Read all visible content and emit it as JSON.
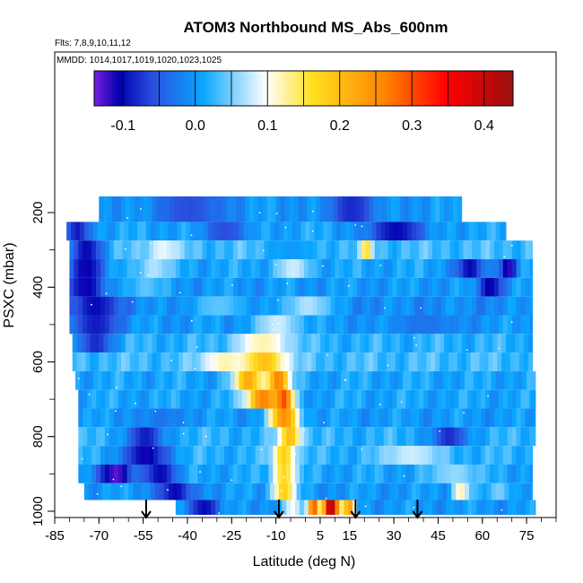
{
  "chart_data": {
    "type": "heatmap",
    "title": "ATOM3 Northbound MS_Abs_600nm",
    "annotations": [
      "Flts: 7,8,9,10,11,12",
      "MMDD: 1014,1017,1019,1020,1023,1025"
    ],
    "xlabel": "Latitude (deg N)",
    "ylabel": "PSXC (mbar)",
    "xlim": [
      -85,
      85
    ],
    "ylim": [
      1000,
      100
    ],
    "x_ticks": [
      -85,
      -70,
      -55,
      -40,
      -25,
      -10,
      5,
      15,
      30,
      45,
      60,
      75
    ],
    "x_tick_labels": [
      "-85",
      "-70",
      "-55",
      "-40",
      "-25",
      "-10",
      "5",
      "15",
      "30",
      "45",
      "60",
      "75"
    ],
    "y_ticks": [
      200,
      400,
      600,
      800,
      1000
    ],
    "y_tick_labels": [
      "200",
      "400",
      "600",
      "800",
      "1000"
    ],
    "colorbar": {
      "range": [
        -0.14,
        0.44
      ],
      "ticks": [
        -0.1,
        0.0,
        0.1,
        0.2,
        0.3,
        0.4
      ],
      "tick_labels": [
        "-0.1",
        "0.0",
        "0.1",
        "0.2",
        "0.3",
        "0.4"
      ],
      "colors": [
        "#7a1fe0",
        "#0000b0",
        "#2a50e0",
        "#0aa6ff",
        "#ffffff",
        "#ffe020",
        "#ff8000",
        "#ff0000",
        "#9a1010"
      ]
    },
    "profile_arrows_latitude": [
      -54,
      -9,
      17,
      38
    ],
    "rows": [
      {
        "p": 200,
        "x0": -70,
        "x1": 53,
        "bg": 0.0,
        "feat": [
          [
            -40,
            0.0,
            12,
            -0.06
          ],
          [
            15,
            -0.06,
            8,
            -0.08
          ]
        ]
      },
      {
        "p": 250,
        "x0": -81,
        "x1": 68,
        "bg": 0.01,
        "feat": [
          [
            -78,
            -0.06,
            4,
            -0.09
          ],
          [
            -28,
            -0.04,
            8,
            -0.06
          ],
          [
            30,
            -0.08,
            10,
            -0.1
          ]
        ]
      },
      {
        "p": 300,
        "x0": -80,
        "x1": 77,
        "bg": 0.03,
        "feat": [
          [
            -75,
            -0.09,
            6,
            -0.1
          ],
          [
            -49,
            0.06,
            6,
            0.09
          ],
          [
            -5,
            0.02,
            8,
            0.0
          ],
          [
            20,
            0.12,
            2,
            0.16
          ]
        ]
      },
      {
        "p": 350,
        "x0": -80,
        "x1": 77,
        "bg": 0.01,
        "feat": [
          [
            -75,
            -0.1,
            6,
            -0.11
          ],
          [
            -52,
            0.04,
            6,
            0.07
          ],
          [
            -5,
            0.06,
            6,
            0.08
          ],
          [
            55,
            -0.09,
            5,
            -0.1
          ],
          [
            68,
            -0.11,
            3,
            -0.12
          ]
        ]
      },
      {
        "p": 400,
        "x0": -80,
        "x1": 77,
        "bg": 0.0,
        "feat": [
          [
            -75,
            -0.1,
            6,
            -0.11
          ],
          [
            -55,
            0.02,
            6,
            0.04
          ],
          [
            62,
            -0.1,
            4,
            -0.11
          ]
        ]
      },
      {
        "p": 450,
        "x0": -80,
        "x1": 77,
        "bg": -0.01,
        "feat": [
          [
            -72,
            -0.1,
            8,
            -0.1
          ],
          [
            -30,
            0.02,
            10,
            0.04
          ],
          [
            0,
            0.05,
            8,
            0.07
          ]
        ]
      },
      {
        "p": 500,
        "x0": -80,
        "x1": 77,
        "bg": 0.0,
        "feat": [
          [
            -72,
            -0.09,
            8,
            -0.09
          ],
          [
            -10,
            0.06,
            8,
            0.08
          ],
          [
            40,
            -0.01,
            12,
            -0.03
          ]
        ]
      },
      {
        "p": 550,
        "x0": -79,
        "x1": 77,
        "bg": 0.02,
        "feat": [
          [
            -72,
            -0.07,
            6,
            -0.08
          ],
          [
            -15,
            0.1,
            10,
            0.12
          ]
        ]
      },
      {
        "p": 600,
        "x0": -79,
        "x1": 77,
        "bg": 0.03,
        "feat": [
          [
            -15,
            0.15,
            8,
            0.2
          ],
          [
            -28,
            0.1,
            8,
            0.12
          ]
        ]
      },
      {
        "p": 650,
        "x0": -78,
        "x1": 78,
        "bg": 0.01,
        "feat": [
          [
            -20,
            0.18,
            5,
            0.22
          ],
          [
            -10,
            0.23,
            4,
            0.26
          ]
        ]
      },
      {
        "p": 700,
        "x0": -77,
        "x1": 78,
        "bg": 0.01,
        "feat": [
          [
            -15,
            0.2,
            6,
            0.26
          ],
          [
            -8,
            0.25,
            3,
            0.3
          ]
        ]
      },
      {
        "p": 750,
        "x0": -77,
        "x1": 78,
        "bg": 0.0,
        "feat": [
          [
            -8,
            0.18,
            5,
            0.25
          ],
          [
            -50,
            -0.02,
            6,
            -0.03
          ]
        ]
      },
      {
        "p": 800,
        "x0": -77,
        "x1": 78,
        "bg": 0.02,
        "feat": [
          [
            -55,
            -0.07,
            6,
            -0.09
          ],
          [
            -6,
            0.15,
            4,
            0.2
          ],
          [
            48,
            -0.07,
            6,
            -0.08
          ]
        ]
      },
      {
        "p": 850,
        "x0": -77,
        "x1": 77,
        "bg": 0.02,
        "feat": [
          [
            -55,
            -0.1,
            8,
            -0.11
          ],
          [
            -8,
            0.12,
            4,
            0.18
          ],
          [
            35,
            0.07,
            10,
            0.08
          ]
        ]
      },
      {
        "p": 900,
        "x0": -77,
        "x1": 77,
        "bg": 0.01,
        "feat": [
          [
            -65,
            -0.12,
            6,
            -0.13
          ],
          [
            -50,
            -0.09,
            6,
            -0.1
          ],
          [
            -8,
            0.12,
            4,
            0.17
          ],
          [
            50,
            0.04,
            8,
            0.06
          ]
        ]
      },
      {
        "p": 950,
        "x0": -75,
        "x1": 77,
        "bg": 0.0,
        "feat": [
          [
            -45,
            -0.09,
            6,
            -0.1
          ],
          [
            -8,
            0.12,
            4,
            0.18
          ],
          [
            52,
            0.07,
            3,
            0.12
          ],
          [
            65,
            0.03,
            4,
            0.05
          ]
        ]
      },
      {
        "p": 990,
        "x0": -44,
        "x1": 78,
        "bg": 0.0,
        "feat": [
          [
            -35,
            -0.09,
            5,
            -0.1
          ],
          [
            8,
            0.38,
            3,
            0.42
          ],
          [
            2,
            0.22,
            2,
            0.3
          ],
          [
            14,
            0.2,
            2,
            0.24
          ],
          [
            -5,
            0.08,
            3,
            0.1
          ]
        ]
      }
    ]
  }
}
